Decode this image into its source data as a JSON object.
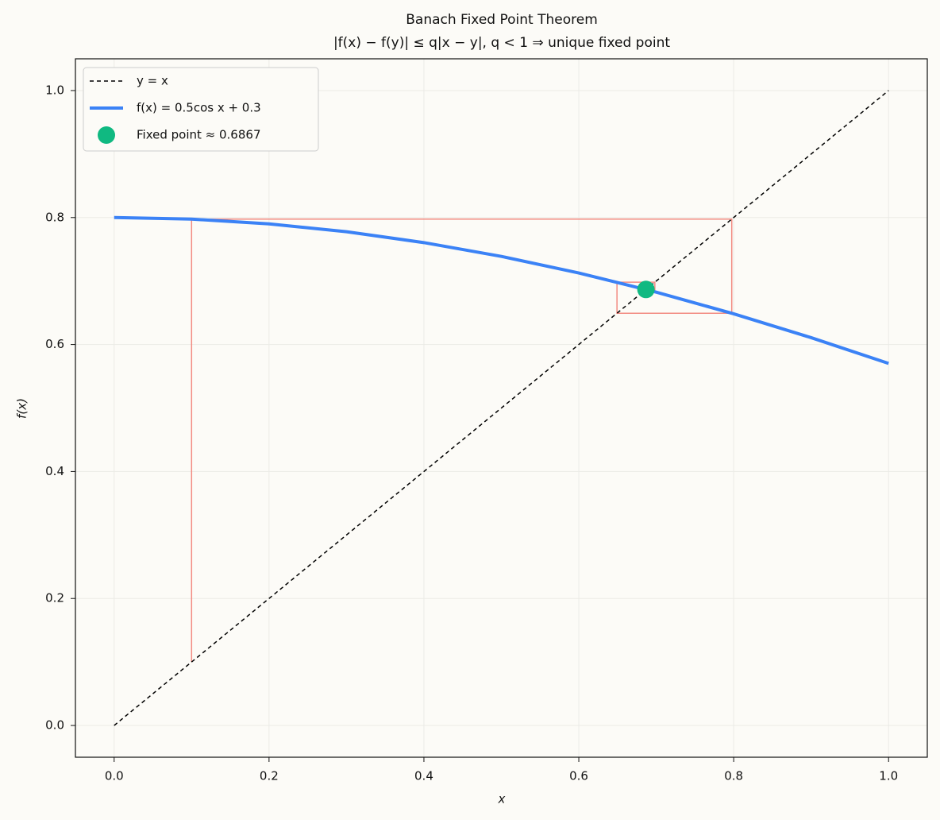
{
  "chart_data": {
    "type": "line",
    "title": "Banach Fixed Point Theorem",
    "subtitle": "|f(x) − f(y)| ≤ q|x − y|, q < 1 ⇒ unique fixed point",
    "x_label": "x",
    "y_label": "f(x)",
    "xlim": [
      -0.05,
      1.05
    ],
    "ylim": [
      -0.05,
      1.05
    ],
    "xticks": [
      {
        "value": 0,
        "label": "0.0"
      },
      0.2,
      0.4,
      0.6,
      0.8,
      {
        "value": 1,
        "label": "1.0"
      }
    ],
    "yticks": [
      {
        "value": 0,
        "label": "0.0"
      },
      0.2,
      0.4,
      0.6,
      0.8,
      {
        "value": 1,
        "label": "1.0"
      }
    ],
    "grid": true,
    "legend": "upper left",
    "series": [
      {
        "name": "y = x",
        "kind": "line",
        "dash": true,
        "color": "#000000",
        "width": 1.5,
        "x": [
          0,
          1
        ],
        "values": [
          0,
          1
        ]
      },
      {
        "name": "f(x) = 0.5cos x + 0.3",
        "kind": "line",
        "color": "#3b82f6",
        "width": 4,
        "x": [
          0,
          0.1,
          0.2,
          0.3,
          0.4,
          0.5,
          0.6,
          0.7,
          0.8,
          0.9,
          1.0
        ],
        "values": [
          0.8,
          0.7975,
          0.79,
          0.7777,
          0.7605,
          0.7388,
          0.7127,
          0.6824,
          0.6484,
          0.6108,
          0.5702
        ]
      },
      {
        "kind": "line",
        "color": "#f28b82",
        "width": 1.5,
        "x": [
          0.1,
          0.1,
          0.7975,
          0.7975,
          0.6493,
          0.6493,
          0.6982,
          0.6982,
          0.683,
          0.683
        ],
        "values": [
          0.1,
          0.7975,
          0.7975,
          0.6493,
          0.6493,
          0.6982,
          0.6982,
          0.683,
          0.683,
          0.6877
        ]
      },
      {
        "name": "Fixed point  ≈ 0.6867",
        "kind": "scatter",
        "color": "#10b981",
        "x": [
          0.6867
        ],
        "values": [
          0.6867
        ]
      }
    ]
  }
}
